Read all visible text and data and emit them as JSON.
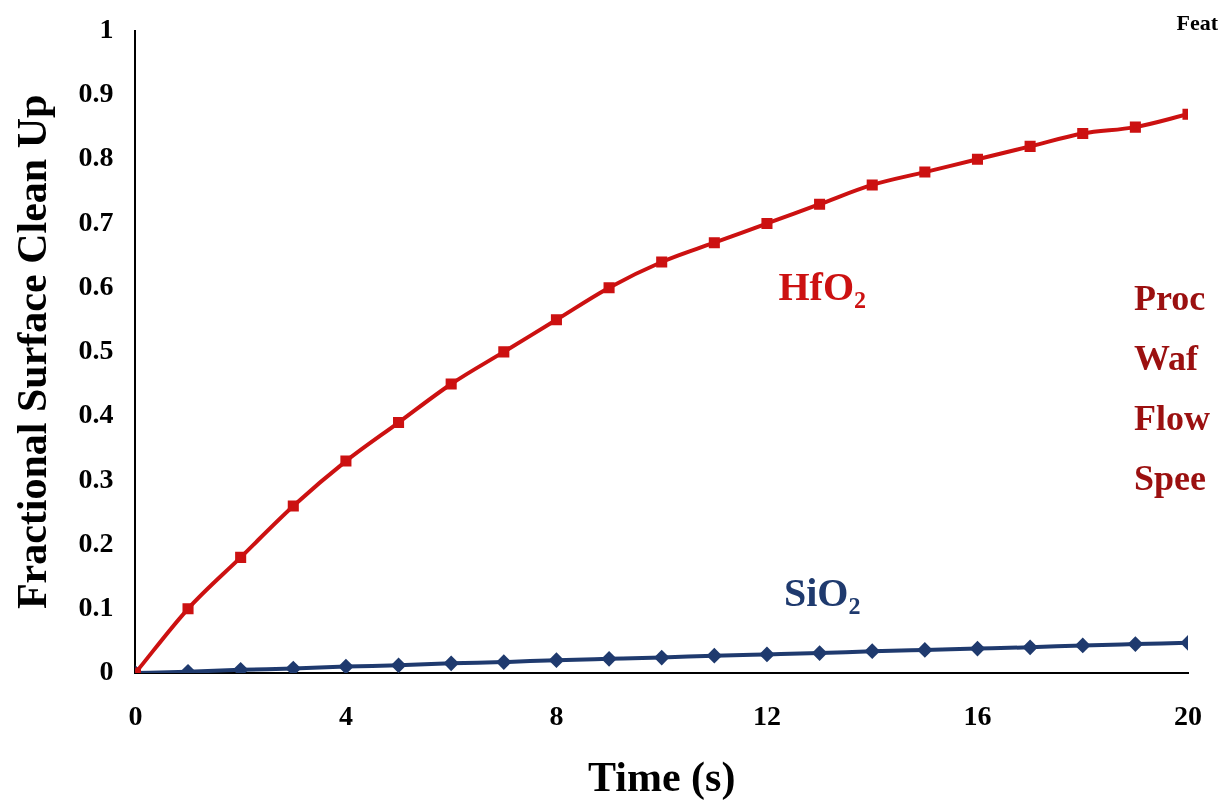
{
  "chart_data": {
    "type": "line",
    "xlabel": "Time (s)",
    "ylabel": "Fractional Surface Clean Up",
    "x": [
      0,
      1,
      2,
      3,
      4,
      5,
      6,
      7,
      8,
      9,
      10,
      11,
      12,
      13,
      14,
      15,
      16,
      17,
      18,
      19,
      20
    ],
    "series": [
      {
        "name": "HfO₂",
        "color": "#cc1111",
        "marker": "square",
        "values": [
          0,
          0.1,
          0.18,
          0.26,
          0.33,
          0.39,
          0.45,
          0.5,
          0.55,
          0.6,
          0.64,
          0.67,
          0.7,
          0.73,
          0.76,
          0.78,
          0.8,
          0.82,
          0.84,
          0.85,
          0.87
        ]
      },
      {
        "name": "SiO₂",
        "color": "#1f3a6e",
        "marker": "diamond",
        "values": [
          0,
          0.002,
          0.005,
          0.007,
          0.01,
          0.012,
          0.015,
          0.017,
          0.02,
          0.022,
          0.024,
          0.027,
          0.029,
          0.031,
          0.034,
          0.036,
          0.038,
          0.04,
          0.043,
          0.045,
          0.047
        ]
      }
    ],
    "xlim": [
      0,
      20
    ],
    "xticks": [
      0,
      4,
      8,
      12,
      16,
      20
    ],
    "ylim": [
      0,
      1
    ],
    "yticks": [
      0,
      0.1,
      0.2,
      0.3,
      0.4,
      0.5,
      0.6,
      0.7,
      0.8,
      0.9,
      1
    ],
    "grid": false,
    "legend": false,
    "line_style": "solid",
    "annotations": [
      "Feat",
      "Proc",
      "Waf",
      "Flow",
      "Spee"
    ]
  }
}
